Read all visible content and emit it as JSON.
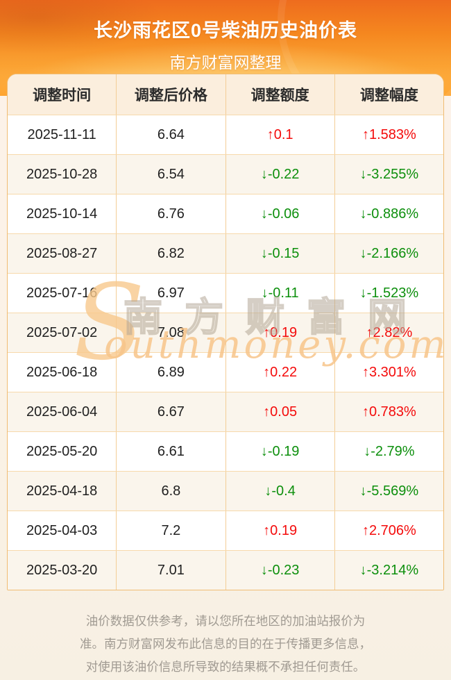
{
  "banner": {
    "title": "长沙雨花区0号柴油历史油价表",
    "subtitle": "南方财富网整理"
  },
  "table": {
    "headers": [
      "调整时间",
      "调整后价格",
      "调整额度",
      "调整幅度"
    ],
    "rows": [
      {
        "date": "2025-11-11",
        "price": "6.64",
        "change": "↑0.1",
        "percent": "↑1.583%",
        "trend": "up"
      },
      {
        "date": "2025-10-28",
        "price": "6.54",
        "change": "↓-0.22",
        "percent": "↓-3.255%",
        "trend": "down"
      },
      {
        "date": "2025-10-14",
        "price": "6.76",
        "change": "↓-0.06",
        "percent": "↓-0.886%",
        "trend": "down"
      },
      {
        "date": "2025-08-27",
        "price": "6.82",
        "change": "↓-0.15",
        "percent": "↓-2.166%",
        "trend": "down"
      },
      {
        "date": "2025-07-16",
        "price": "6.97",
        "change": "↓-0.11",
        "percent": "↓-1.523%",
        "trend": "down"
      },
      {
        "date": "2025-07-02",
        "price": "7.08",
        "change": "↑0.19",
        "percent": "↑2.82%",
        "trend": "up"
      },
      {
        "date": "2025-06-18",
        "price": "6.89",
        "change": "↑0.22",
        "percent": "↑3.301%",
        "trend": "up"
      },
      {
        "date": "2025-06-04",
        "price": "6.67",
        "change": "↑0.05",
        "percent": "↑0.783%",
        "trend": "up"
      },
      {
        "date": "2025-05-20",
        "price": "6.61",
        "change": "↓-0.19",
        "percent": "↓-2.79%",
        "trend": "down"
      },
      {
        "date": "2025-04-18",
        "price": "6.8",
        "change": "↓-0.4",
        "percent": "↓-5.569%",
        "trend": "down"
      },
      {
        "date": "2025-04-03",
        "price": "7.2",
        "change": "↑0.19",
        "percent": "↑2.706%",
        "trend": "up"
      },
      {
        "date": "2025-03-20",
        "price": "7.01",
        "change": "↓-0.23",
        "percent": "↓-3.214%",
        "trend": "down"
      }
    ]
  },
  "watermark": {
    "initial": "S",
    "cn": "南方财富网",
    "en": "outhmoney.com"
  },
  "disclaimer": {
    "lines": [
      "油价数据仅供参考，请以您所在地区的加油站报价为",
      "准。南方财富网发布此信息的目的在于传播更多信息，",
      "对使用该油价信息所导致的结果概不承担任何责任。"
    ]
  },
  "colors": {
    "up": "#f40b0b",
    "down": "#0c8f0c",
    "banner_top": "#ee6c1e",
    "banner_bottom": "#fcc465",
    "header_bg": "#fbeedd",
    "row_alt_bg": "#faf5ec",
    "border": "#f3cd96",
    "disclaimer_text": "#a09a92"
  },
  "chart_data": {
    "type": "table",
    "title": "长沙雨花区0号柴油历史油价表",
    "subtitle": "南方财富网整理",
    "columns": [
      "调整时间",
      "调整后价格",
      "调整额度",
      "调整幅度"
    ],
    "rows": [
      [
        "2025-11-11",
        "6.64",
        "↑0.1",
        "↑1.583%"
      ],
      [
        "2025-10-28",
        "6.54",
        "↓-0.22",
        "↓-3.255%"
      ],
      [
        "2025-10-14",
        "6.76",
        "↓-0.06",
        "↓-0.886%"
      ],
      [
        "2025-08-27",
        "6.82",
        "↓-0.15",
        "↓-2.166%"
      ],
      [
        "2025-07-16",
        "6.97",
        "↓-0.11",
        "↓-1.523%"
      ],
      [
        "2025-07-02",
        "7.08",
        "↑0.19",
        "↑2.82%"
      ],
      [
        "2025-06-18",
        "6.89",
        "↑0.22",
        "↑3.301%"
      ],
      [
        "2025-06-04",
        "6.67",
        "↑0.05",
        "↑0.783%"
      ],
      [
        "2025-05-20",
        "6.61",
        "↓-0.19",
        "↓-2.79%"
      ],
      [
        "2025-04-18",
        "6.8",
        "↓-0.4",
        "↓-5.569%"
      ],
      [
        "2025-04-03",
        "7.2",
        "↑0.19",
        "↑2.706%"
      ],
      [
        "2025-03-20",
        "7.01",
        "↓-0.23",
        "↓-3.214%"
      ]
    ]
  }
}
